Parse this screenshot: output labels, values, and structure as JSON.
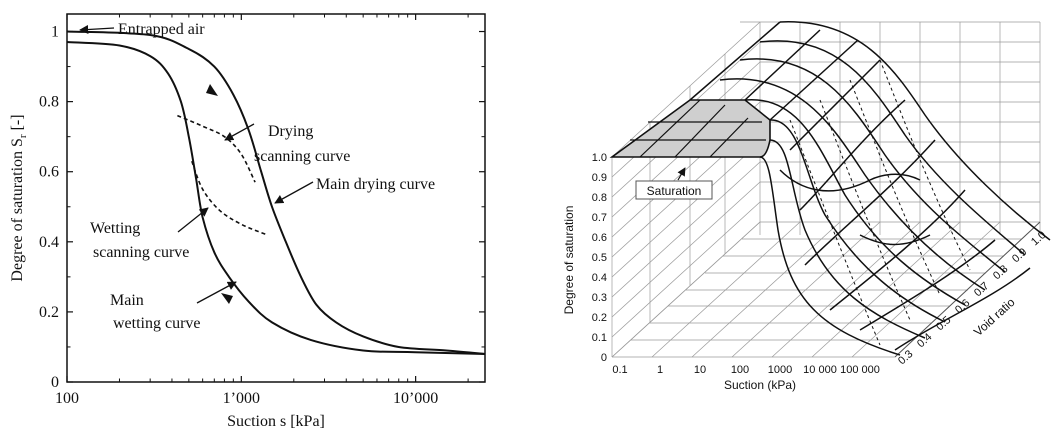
{
  "chart_data": [
    {
      "type": "line",
      "xlabel": "Suction s [kPa]",
      "ylabel": "Degree of saturation S",
      "ylabel_sub": "r",
      "ylabel_unit": "[-]",
      "x_scale": "log",
      "xlim": [
        100,
        25000
      ],
      "ylim": [
        0,
        1.05
      ],
      "x_ticks": [
        100,
        1000,
        10000
      ],
      "x_tick_labels": [
        "100",
        "1’000",
        "10’000"
      ],
      "y_ticks": [
        0,
        0.2,
        0.4,
        0.6,
        0.8,
        1
      ],
      "y_tick_labels": [
        "0",
        "0.2",
        "0.4",
        "0.6",
        "0.8",
        "1"
      ],
      "series": [
        {
          "name": "Main drying curve",
          "style": "solid",
          "x": [
            100,
            300,
            500,
            700,
            900,
            1100,
            1300,
            1500,
            1800,
            2200,
            2700,
            3500,
            5000,
            8000,
            15000,
            25000
          ],
          "y": [
            1.0,
            0.99,
            0.95,
            0.9,
            0.82,
            0.72,
            0.6,
            0.5,
            0.4,
            0.3,
            0.22,
            0.17,
            0.13,
            0.1,
            0.09,
            0.08
          ]
        },
        {
          "name": "Main wetting curve",
          "style": "solid",
          "x": [
            100,
            200,
            300,
            380,
            450,
            500,
            550,
            600,
            700,
            850,
            1100,
            1500,
            2500,
            5000,
            10000,
            25000
          ],
          "y": [
            0.97,
            0.96,
            0.93,
            0.88,
            0.8,
            0.7,
            0.58,
            0.47,
            0.37,
            0.3,
            0.23,
            0.17,
            0.12,
            0.09,
            0.085,
            0.08
          ]
        },
        {
          "name": "Drying scanning curve",
          "style": "dashed",
          "x": [
            430,
            600,
            800,
            1000,
            1200
          ],
          "y": [
            0.76,
            0.73,
            0.7,
            0.65,
            0.57
          ]
        },
        {
          "name": "Wetting scanning curve",
          "style": "dashed",
          "x": [
            520,
            600,
            750,
            1000,
            1400
          ],
          "y": [
            0.63,
            0.55,
            0.49,
            0.45,
            0.42
          ]
        }
      ],
      "annotations": [
        {
          "text": "Entrapped air"
        },
        {
          "text": "Drying"
        },
        {
          "text": "scanning curve"
        },
        {
          "text": "Main drying curve"
        },
        {
          "text": "Wetting"
        },
        {
          "text": "scanning curve"
        },
        {
          "text": "Main"
        },
        {
          "text": "wetting curve"
        }
      ]
    },
    {
      "type": "surface",
      "xlabel": "Suction (kPa)",
      "ylabel": "Degree of saturation",
      "zlabel": "Void ratio",
      "x_scale": "log",
      "x_tick_labels": [
        "0.1",
        "1",
        "10",
        "100",
        "1000",
        "10 000",
        "100 000"
      ],
      "y_tick_labels": [
        "0",
        "0.1",
        "0.2",
        "0.3",
        "0.4",
        "0.5",
        "0.6",
        "0.7",
        "0.8",
        "0.9",
        "1.0"
      ],
      "z_tick_labels": [
        "0.3",
        "0.4",
        "0.5",
        "0.6",
        "0.7",
        "0.8",
        "0.9",
        "1.0"
      ],
      "annotation": "Saturation"
    }
  ]
}
